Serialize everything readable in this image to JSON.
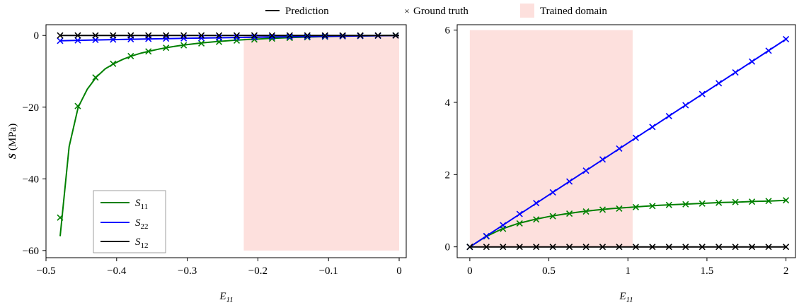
{
  "legend_top": {
    "prediction": "Prediction",
    "ground_truth": "Ground truth",
    "trained_domain": "Trained domain"
  },
  "colors": {
    "S11": "#008000",
    "S22": "#0000ff",
    "S12": "#000000",
    "trained_domain": "#fde0dd"
  },
  "chart_data": [
    {
      "type": "line",
      "xlabel": "E11",
      "ylabel": "S (MPa)",
      "xlim": [
        -0.5,
        0.01
      ],
      "ylim": [
        -62,
        3
      ],
      "xticks": [
        -0.5,
        -0.4,
        -0.3,
        -0.2,
        -0.1,
        0
      ],
      "xtick_labels": [
        "−0.5",
        "−0.4",
        "−0.3",
        "−0.2",
        "−0.1",
        "0"
      ],
      "yticks": [
        -60,
        -40,
        -20,
        0
      ],
      "ytick_labels": [
        "−60",
        "−40",
        "−20",
        "0"
      ],
      "trained_domain": {
        "x": [
          -0.22,
          0
        ],
        "y": [
          -60,
          0
        ]
      },
      "series": [
        {
          "name": "S11",
          "color": "#008000",
          "x": [
            -0.48,
            -0.4672,
            -0.4544,
            -0.4416,
            -0.4288,
            -0.416,
            -0.4032,
            -0.3904,
            -0.3776,
            -0.3648,
            -0.352,
            -0.3392,
            -0.3264,
            -0.3136,
            -0.3008,
            -0.288,
            -0.2752,
            -0.2624,
            -0.2496,
            -0.2368,
            -0.224,
            -0.2112,
            -0.1984,
            -0.1856,
            -0.1728,
            -0.16,
            -0.1472,
            -0.1344,
            -0.1216,
            -0.1088,
            -0.096,
            -0.0832,
            -0.0704,
            -0.0576,
            -0.0448,
            -0.032,
            -0.0192,
            -0.0064,
            0
          ],
          "y": [
            -56,
            -31,
            -20,
            -15,
            -11.6,
            -9.3,
            -7.8,
            -6.6,
            -5.65,
            -4.9,
            -4.3,
            -3.75,
            -3.3,
            -2.9,
            -2.55,
            -2.25,
            -2.0,
            -1.78,
            -1.58,
            -1.4,
            -1.24,
            -1.1,
            -0.97,
            -0.85,
            -0.74,
            -0.64,
            -0.55,
            -0.47,
            -0.4,
            -0.33,
            -0.27,
            -0.22,
            -0.17,
            -0.13,
            -0.09,
            -0.06,
            -0.03,
            -0.01,
            0
          ],
          "markers_x": [
            -0.48,
            -0.455,
            -0.43,
            -0.405,
            -0.38,
            -0.355,
            -0.33,
            -0.305,
            -0.28,
            -0.255,
            -0.23,
            -0.205,
            -0.18,
            -0.155,
            -0.13,
            -0.105,
            -0.08,
            -0.055,
            -0.03,
            -0.005
          ],
          "markers_y": [
            -50.8,
            -19.7,
            -11.7,
            -7.9,
            -5.75,
            -4.45,
            -3.45,
            -2.75,
            -2.2,
            -1.78,
            -1.42,
            -1.12,
            -0.88,
            -0.67,
            -0.5,
            -0.36,
            -0.24,
            -0.14,
            -0.06,
            0
          ]
        },
        {
          "name": "S22",
          "color": "#0000ff",
          "x": [
            -0.48,
            -0.43,
            -0.38,
            -0.33,
            -0.28,
            -0.23,
            -0.18,
            -0.13,
            -0.08,
            -0.03,
            0
          ],
          "y": [
            -1.5,
            -1.25,
            -1.05,
            -0.88,
            -0.72,
            -0.57,
            -0.43,
            -0.3,
            -0.18,
            -0.07,
            0
          ],
          "markers_x": [
            -0.48,
            -0.455,
            -0.43,
            -0.405,
            -0.38,
            -0.355,
            -0.33,
            -0.305,
            -0.28,
            -0.255,
            -0.23,
            -0.205,
            -0.18,
            -0.155,
            -0.13,
            -0.105,
            -0.08,
            -0.055,
            -0.03,
            -0.005
          ],
          "markers_y": [
            -1.5,
            -1.38,
            -1.25,
            -1.15,
            -1.05,
            -0.96,
            -0.88,
            -0.8,
            -0.72,
            -0.64,
            -0.57,
            -0.5,
            -0.43,
            -0.36,
            -0.3,
            -0.24,
            -0.18,
            -0.12,
            -0.07,
            -0.01
          ]
        },
        {
          "name": "S12",
          "color": "#000000",
          "x": [
            -0.48,
            0
          ],
          "y": [
            0,
            0
          ],
          "markers_x": [
            -0.48,
            -0.455,
            -0.43,
            -0.405,
            -0.38,
            -0.355,
            -0.33,
            -0.305,
            -0.28,
            -0.255,
            -0.23,
            -0.205,
            -0.18,
            -0.155,
            -0.13,
            -0.105,
            -0.08,
            -0.055,
            -0.03,
            -0.005
          ],
          "markers_y": [
            0,
            0,
            0,
            0,
            0,
            0,
            0,
            0,
            0,
            0,
            0,
            0,
            0,
            0,
            0,
            0,
            0,
            0,
            0,
            0
          ]
        }
      ]
    },
    {
      "type": "line",
      "xlabel": "E11",
      "ylabel": "",
      "xlim": [
        -0.08,
        2.06
      ],
      "ylim": [
        -0.3,
        6.15
      ],
      "xticks": [
        0,
        0.5,
        1,
        1.5,
        2
      ],
      "xtick_labels": [
        "0",
        "0.5",
        "1",
        "1.5",
        "2"
      ],
      "yticks": [
        0,
        2,
        4,
        6
      ],
      "ytick_labels": [
        "0",
        "2",
        "4",
        "6"
      ],
      "trained_domain": {
        "x": [
          0,
          1.03
        ],
        "y": [
          0,
          6
        ]
      },
      "series": [
        {
          "name": "S11",
          "color": "#008000",
          "x": [
            0,
            0.1,
            0.2,
            0.3,
            0.4,
            0.5,
            0.6,
            0.7,
            0.8,
            0.9,
            1.0,
            1.1,
            1.2,
            1.3,
            1.4,
            1.5,
            1.6,
            1.7,
            1.8,
            1.9,
            2.0
          ],
          "y": [
            0,
            0.28,
            0.49,
            0.64,
            0.75,
            0.84,
            0.91,
            0.97,
            1.02,
            1.06,
            1.09,
            1.12,
            1.15,
            1.17,
            1.19,
            1.21,
            1.23,
            1.24,
            1.26,
            1.27,
            1.29
          ],
          "markers_x": [
            0,
            0.105,
            0.21,
            0.315,
            0.42,
            0.525,
            0.63,
            0.735,
            0.84,
            0.945,
            1.05,
            1.155,
            1.26,
            1.365,
            1.47,
            1.575,
            1.68,
            1.785,
            1.89,
            2.0
          ],
          "markers_y": [
            0,
            0.29,
            0.5,
            0.65,
            0.76,
            0.85,
            0.92,
            0.98,
            1.03,
            1.06,
            1.1,
            1.13,
            1.16,
            1.18,
            1.2,
            1.22,
            1.24,
            1.25,
            1.27,
            1.29
          ]
        },
        {
          "name": "S22",
          "color": "#0000ff",
          "x": [
            0,
            2
          ],
          "y": [
            0,
            5.75
          ],
          "markers_x": [
            0,
            0.105,
            0.21,
            0.315,
            0.42,
            0.525,
            0.63,
            0.735,
            0.84,
            0.945,
            1.05,
            1.155,
            1.26,
            1.365,
            1.47,
            1.575,
            1.68,
            1.785,
            1.89,
            2.0
          ],
          "markers_y": [
            0,
            0.3,
            0.6,
            0.91,
            1.21,
            1.51,
            1.81,
            2.11,
            2.42,
            2.72,
            3.02,
            3.32,
            3.62,
            3.92,
            4.23,
            4.53,
            4.83,
            5.13,
            5.43,
            5.75
          ]
        },
        {
          "name": "S12",
          "color": "#000000",
          "x": [
            0,
            2
          ],
          "y": [
            0,
            0
          ],
          "markers_x": [
            0,
            0.105,
            0.21,
            0.315,
            0.42,
            0.525,
            0.63,
            0.735,
            0.84,
            0.945,
            1.05,
            1.155,
            1.26,
            1.365,
            1.47,
            1.575,
            1.68,
            1.785,
            1.89,
            2.0
          ],
          "markers_y": [
            0,
            0,
            0,
            0,
            0,
            0,
            0,
            0,
            0,
            0,
            0,
            0,
            0,
            0,
            0,
            0,
            0,
            0,
            0,
            0
          ]
        }
      ]
    }
  ]
}
